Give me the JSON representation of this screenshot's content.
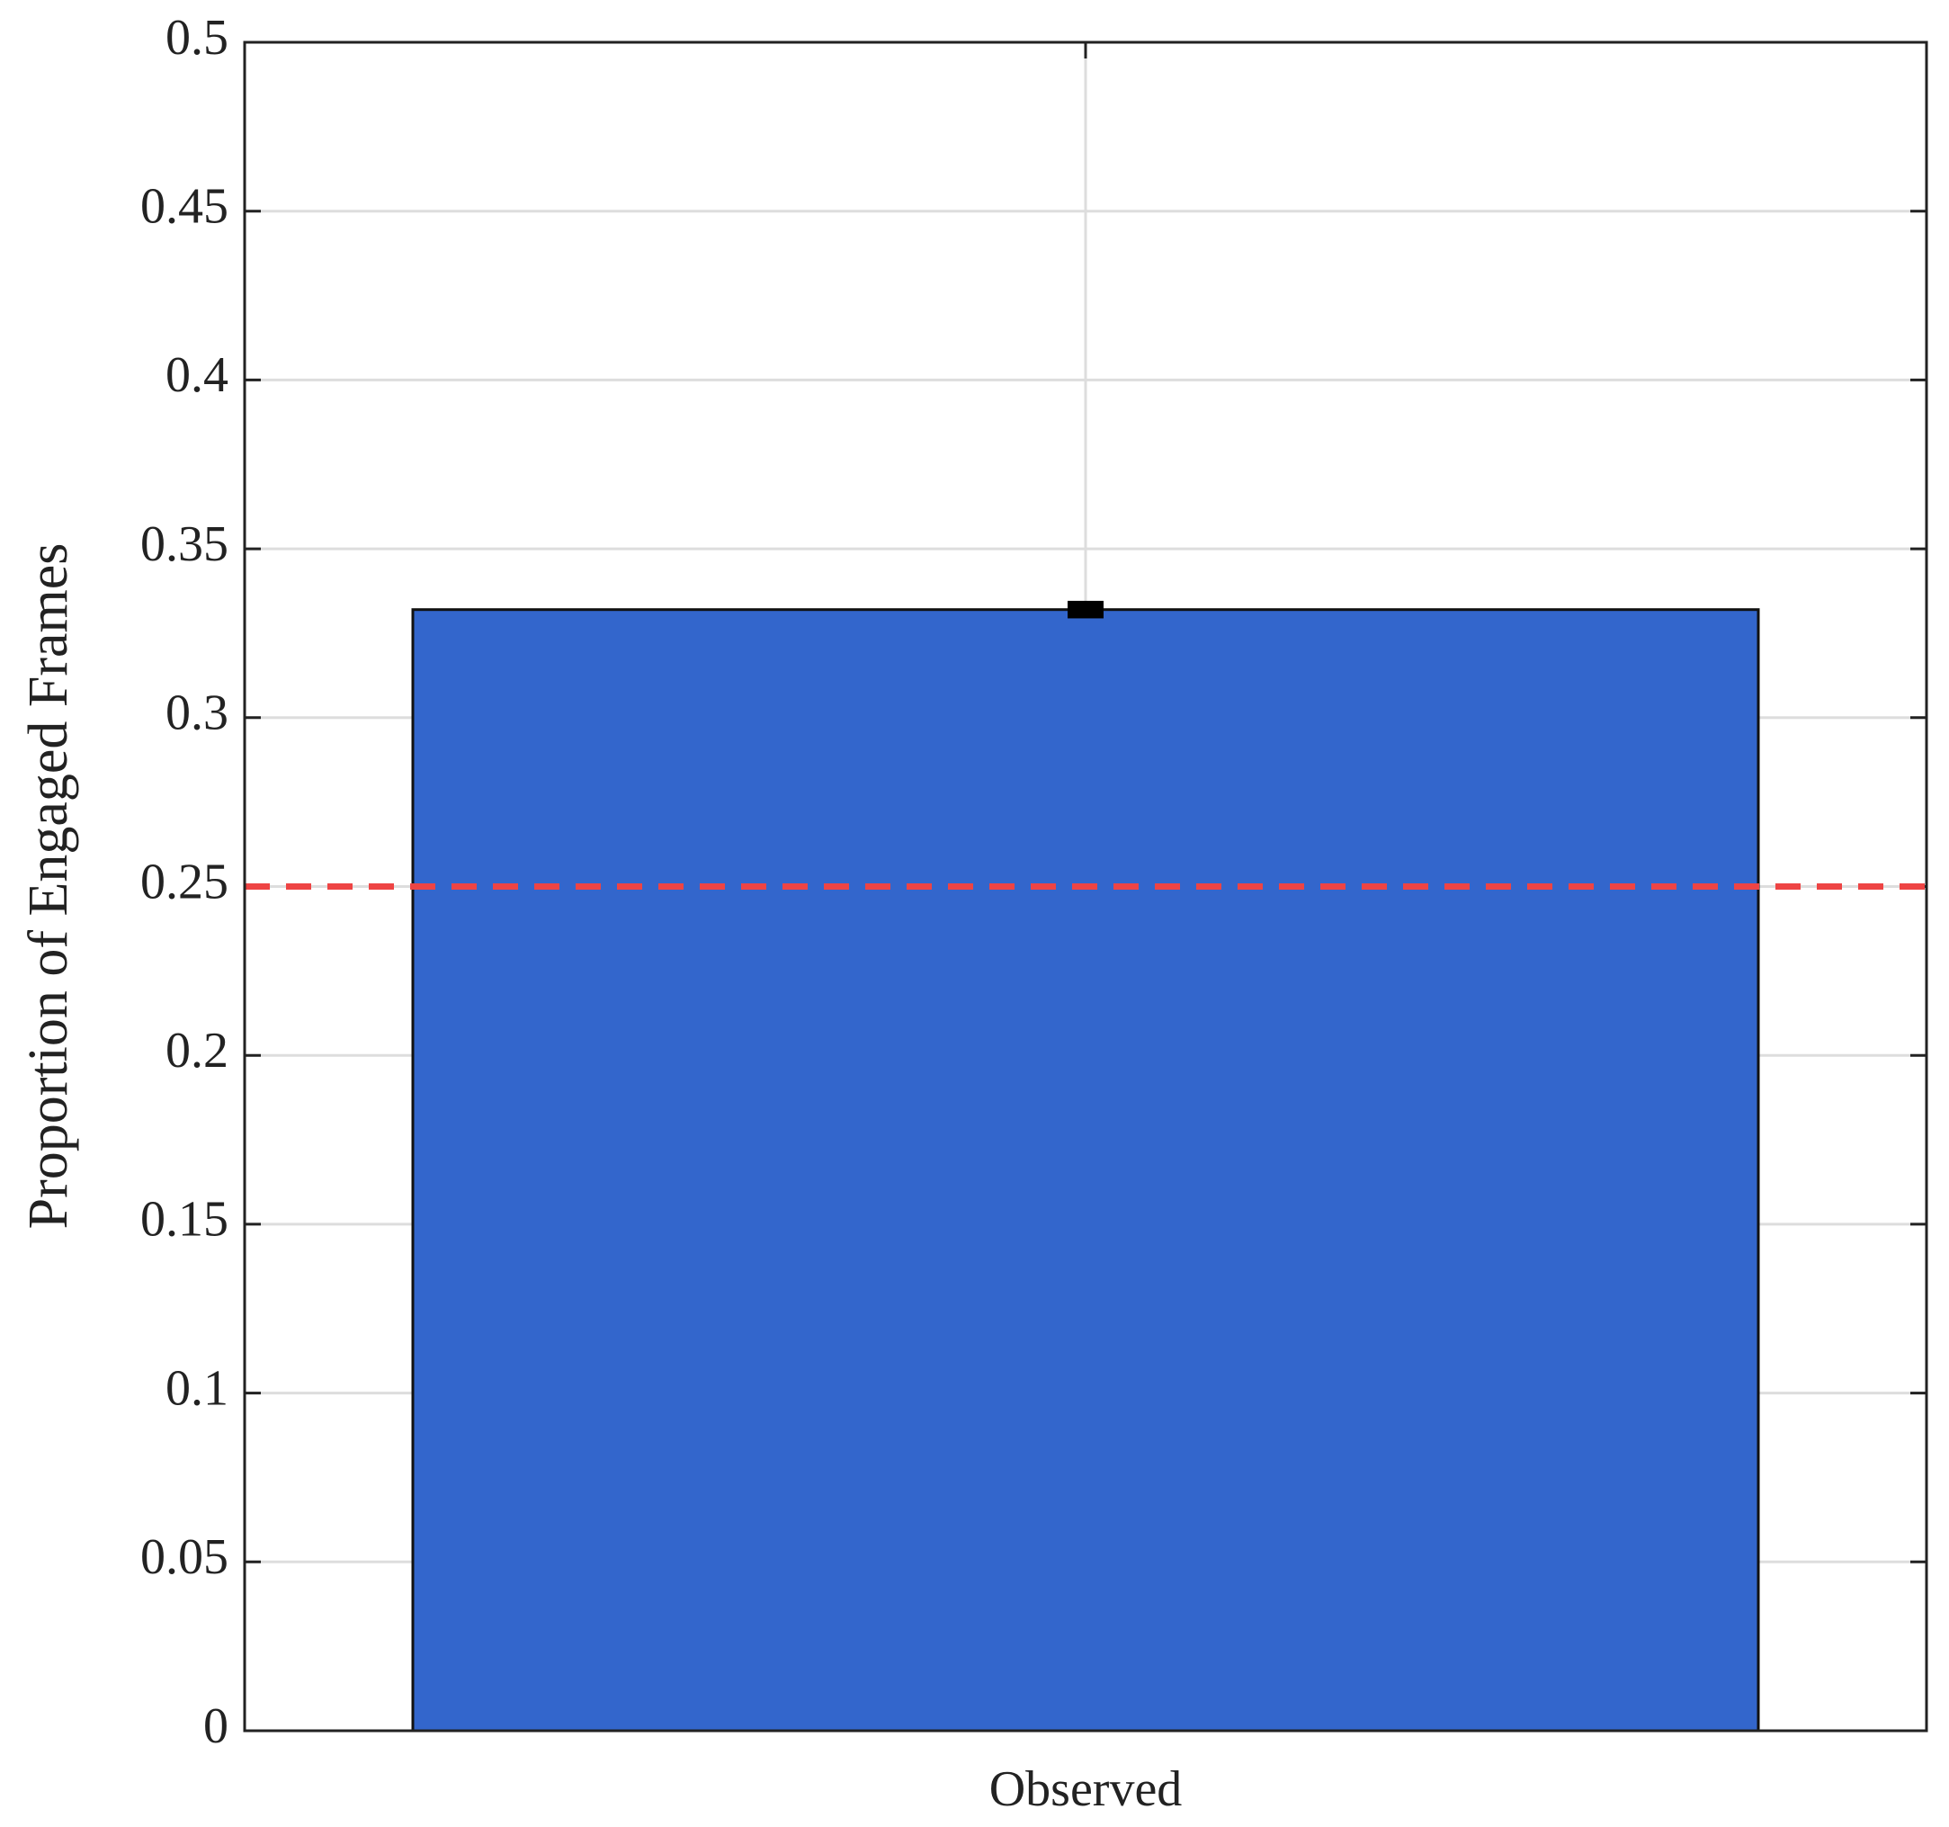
{
  "chart_data": {
    "type": "bar",
    "categories": [
      "Observed"
    ],
    "values": [
      0.332
    ],
    "errors": [
      0.001
    ],
    "color": "#3366cc",
    "ylabel": "Proportion of Engaged Frames",
    "ylim": [
      0,
      0.5
    ],
    "yticks": [
      0,
      0.05,
      0.1,
      0.15,
      0.2,
      0.25,
      0.3,
      0.35,
      0.4,
      0.45,
      0.5
    ],
    "grid": true,
    "reference_line": {
      "value": 0.25,
      "color": "#ee4444"
    }
  }
}
